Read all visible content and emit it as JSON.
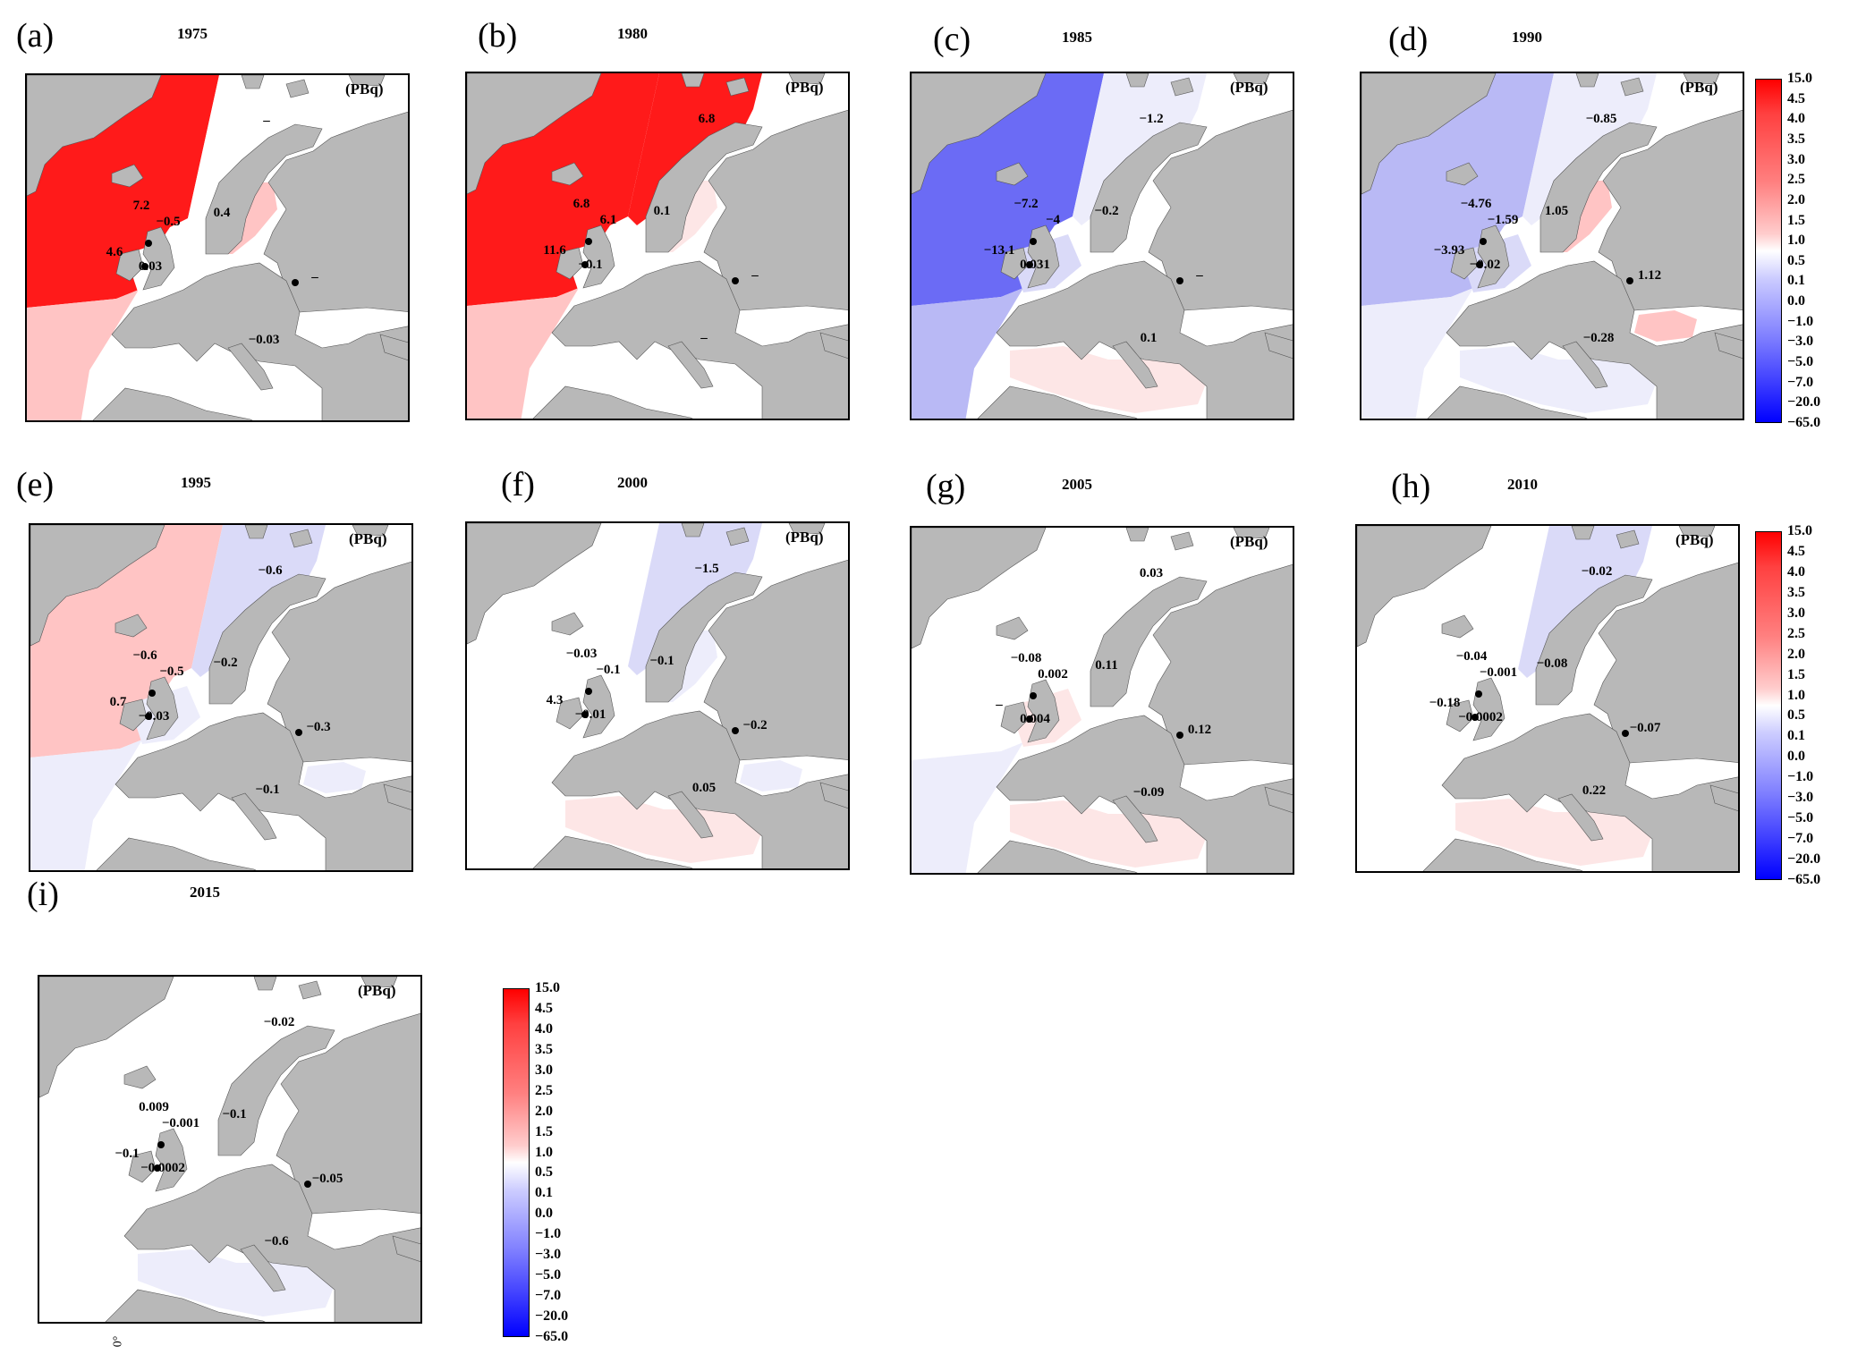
{
  "unit_label": "(PBq)",
  "axis_label": "0°",
  "colors": {
    "land": "#b8b8b8",
    "red_strong": "#ff1a1a",
    "red_light": "#ffc4c4",
    "red_faint": "#fde6e6",
    "blue_strong": "#6b6bf5",
    "blue_medium": "#b9b9f5",
    "blue_light": "#dadaf8",
    "blue_faint": "#ededfb",
    "white": "#ffffff"
  },
  "colorbar_ticks": [
    "15.0",
    "4.5",
    "4.0",
    "3.5",
    "3.0",
    "2.5",
    "2.0",
    "1.5",
    "1.0",
    "0.5",
    "0.1",
    "0.0",
    "−1.0",
    "−3.0",
    "−5.0",
    "−7.0",
    "−20.0",
    "−65.0"
  ],
  "panels": [
    {
      "letter": "(a)",
      "year": "1975",
      "fills": {
        "ocean": "red_strong",
        "south": "red_light",
        "north_east": "white",
        "baltic": "red_light",
        "med": "white",
        "black": "white",
        "channel": "white"
      },
      "values": {
        "north_east": "–",
        "irish": "7.2",
        "north_sea": "−0.5",
        "baltic": "0.4",
        "celtic": "4.6",
        "channel": "0.03",
        "black": "–",
        "med": "−0.03"
      }
    },
    {
      "letter": "(b)",
      "year": "1980",
      "fills": {
        "ocean": "red_strong",
        "south": "red_light",
        "north_east": "red_strong",
        "baltic": "red_faint",
        "med": "white",
        "black": "white",
        "channel": "white"
      },
      "values": {
        "north_east": "6.8",
        "irish": "6.8",
        "north_sea": "6.1",
        "baltic": "0.1",
        "celtic": "11.6",
        "channel": "−0.1",
        "black": "–",
        "med": "–"
      }
    },
    {
      "letter": "(c)",
      "year": "1985",
      "fills": {
        "ocean": "blue_strong",
        "south": "blue_medium",
        "north_east": "blue_faint",
        "baltic": "white",
        "med": "red_faint",
        "black": "white",
        "channel": "blue_light"
      },
      "values": {
        "north_east": "−1.2",
        "irish": "−7.2",
        "north_sea": "−4",
        "baltic": "−0.2",
        "celtic": "−13.1",
        "channel": "0.031",
        "black": "–",
        "med": "0.1"
      }
    },
    {
      "letter": "(d)",
      "year": "1990",
      "fills": {
        "ocean": "blue_medium",
        "south": "blue_faint",
        "north_east": "blue_faint",
        "baltic": "red_light",
        "med": "blue_faint",
        "black": "red_light",
        "channel": "blue_light"
      },
      "values": {
        "north_east": "−0.85",
        "irish": "−4.76",
        "north_sea": "−1.59",
        "baltic": "1.05",
        "celtic": "−3.93",
        "channel": "−0.02",
        "black": "1.12",
        "med": "−0.28"
      }
    },
    {
      "letter": "(e)",
      "year": "1995",
      "fills": {
        "ocean": "red_light",
        "south": "blue_faint",
        "north_east": "blue_light",
        "baltic": "white",
        "med": "white",
        "black": "blue_faint",
        "channel": "blue_faint"
      },
      "values": {
        "north_east": "−0.6",
        "irish": "−0.6",
        "north_sea": "−0.5",
        "baltic": "−0.2",
        "celtic": "0.7",
        "channel": "−0.03",
        "black": "−0.3",
        "med": "−0.1"
      }
    },
    {
      "letter": "(f)",
      "year": "2000",
      "fills": {
        "ocean": "white",
        "south": "white",
        "north_east": "blue_light",
        "baltic": "blue_faint",
        "med": "red_faint",
        "black": "blue_faint",
        "channel": "white"
      },
      "values": {
        "north_east": "−1.5",
        "irish": "−0.03",
        "north_sea": "−0.1",
        "baltic": "−0.1",
        "celtic": "4.3",
        "channel": "−0.01",
        "black": "−0.2",
        "med": "0.05"
      }
    },
    {
      "letter": "(g)",
      "year": "2005",
      "fills": {
        "ocean": "white",
        "south": "blue_faint",
        "north_east": "white",
        "baltic": "white",
        "med": "red_faint",
        "black": "white",
        "channel": "red_faint"
      },
      "values": {
        "north_east": "0.03",
        "irish": "−0.08",
        "north_sea": "0.002",
        "baltic": "0.11",
        "celtic": "–",
        "channel": "0.004",
        "black": "0.12",
        "med": "−0.09"
      }
    },
    {
      "letter": "(h)",
      "year": "2010",
      "fills": {
        "ocean": "white",
        "south": "white",
        "north_east": "blue_light",
        "baltic": "white",
        "med": "red_faint",
        "black": "white",
        "channel": "white"
      },
      "values": {
        "north_east": "−0.02",
        "irish": "−0.04",
        "north_sea": "−0.001",
        "baltic": "−0.08",
        "celtic": "−0.18",
        "channel": "−0.0002",
        "black": "−0.07",
        "med": "0.22"
      }
    },
    {
      "letter": "(i)",
      "year": "2015",
      "fills": {
        "ocean": "white",
        "south": "white",
        "north_east": "white",
        "baltic": "white",
        "med": "blue_faint",
        "black": "white",
        "channel": "white"
      },
      "values": {
        "north_east": "−0.02",
        "irish": "0.009",
        "north_sea": "−0.001",
        "baltic": "−0.1",
        "celtic": "−0.1",
        "channel": "−0.0002",
        "black": "−0.05",
        "med": "−0.6"
      }
    }
  ]
}
